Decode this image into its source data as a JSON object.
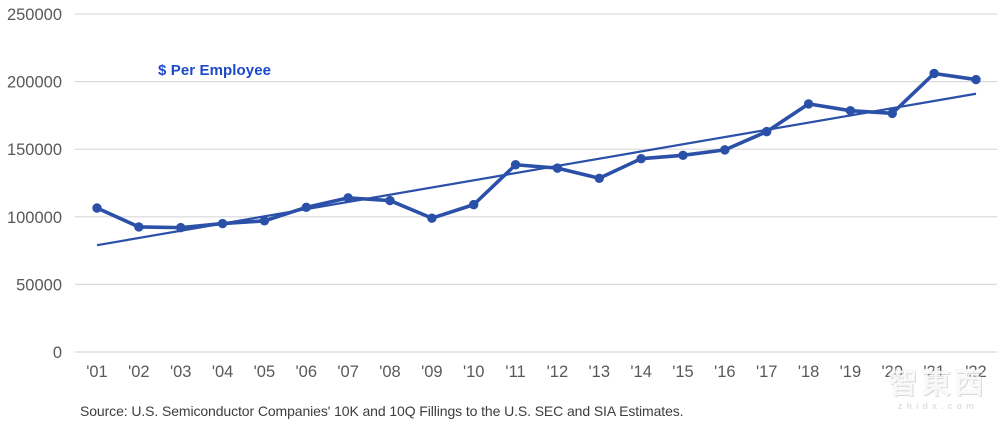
{
  "chart_data": {
    "type": "line",
    "title": "$ Per Employee",
    "categories": [
      "'01",
      "'02",
      "'03",
      "'04",
      "'05",
      "'06",
      "'07",
      "'08",
      "'09",
      "'10",
      "'11",
      "'12",
      "'13",
      "'14",
      "'15",
      "'16",
      "'17",
      "'18",
      "'19",
      "'20",
      "'21",
      "'22"
    ],
    "series": [
      {
        "name": "$ Per Employee",
        "values": [
          106500,
          92500,
          92000,
          95000,
          97000,
          107000,
          114000,
          112000,
          99000,
          109000,
          138500,
          136000,
          128500,
          143000,
          145500,
          149500,
          163000,
          183500,
          178500,
          176500,
          206000,
          201500
        ]
      }
    ],
    "trendline": {
      "start_value": 79000,
      "end_value": 191000
    },
    "xlabel": "",
    "ylabel": "",
    "ylim": [
      0,
      250000
    ],
    "yticks": [
      0,
      50000,
      100000,
      150000,
      200000,
      250000
    ],
    "grid": "horizontal",
    "legend_position": "inside-top-left",
    "marker": "circle"
  },
  "colors": {
    "series_line": "#2B50A8",
    "trend_line": "#2B50A8",
    "legend_text": "#1B49C8",
    "gridline": "#D9D9D9",
    "axis_text": "#595959",
    "source_text": "#3D3D3D",
    "background": "#FFFFFF"
  },
  "source": {
    "text": "Source: U.S. Semiconductor Companies' 10K and 10Q Fillings to the U.S. SEC and SIA Estimates."
  },
  "watermark": {
    "logo": "智東西",
    "url": "zhidx.com"
  }
}
